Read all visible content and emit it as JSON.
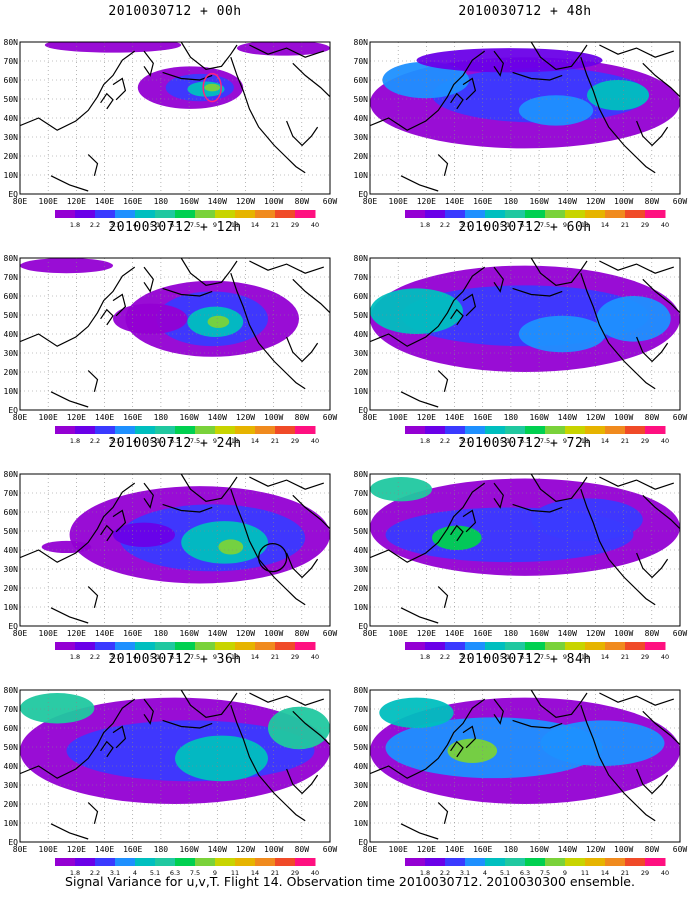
{
  "panels": [
    {
      "title": "2010030712 + 00h",
      "lead": "00h"
    },
    {
      "title": "2010030712 + 48h",
      "lead": "48h"
    },
    {
      "title": "2010030712 + 12h",
      "lead": "12h"
    },
    {
      "title": "2010030712 + 60h",
      "lead": "60h"
    },
    {
      "title": "2010030712 + 24h",
      "lead": "24h"
    },
    {
      "title": "2010030712 + 72h",
      "lead": "72h"
    },
    {
      "title": "2010030712 + 36h",
      "lead": "36h"
    },
    {
      "title": "2010030712 + 84h",
      "lead": "84h"
    }
  ],
  "axes": {
    "lat_labels": [
      "80N",
      "70N",
      "60N",
      "50N",
      "40N",
      "30N",
      "20N",
      "10N",
      "EQ"
    ],
    "lon_labels": [
      "80E",
      "100E",
      "120E",
      "140E",
      "160E",
      "180",
      "160W",
      "140W",
      "120W",
      "100W",
      "80W",
      "60W"
    ]
  },
  "colorbar": {
    "labels": [
      "1.8",
      "2.2",
      "3.1",
      "4",
      "5.1",
      "6.3",
      "7.5",
      "9",
      "11",
      "14",
      "21",
      "29",
      "40"
    ],
    "colors": [
      "#9400d3",
      "#6a00e8",
      "#3a3aff",
      "#1e90ff",
      "#00bfbf",
      "#20c8a0",
      "#00d050",
      "#7ad23a",
      "#c8d400",
      "#e6b400",
      "#f08a1e",
      "#f04a28",
      "#ff1080"
    ]
  },
  "footer": "Signal Variance for u,v,T. Flight 14. Observation time 2010030712. 2010030300 ensemble."
}
